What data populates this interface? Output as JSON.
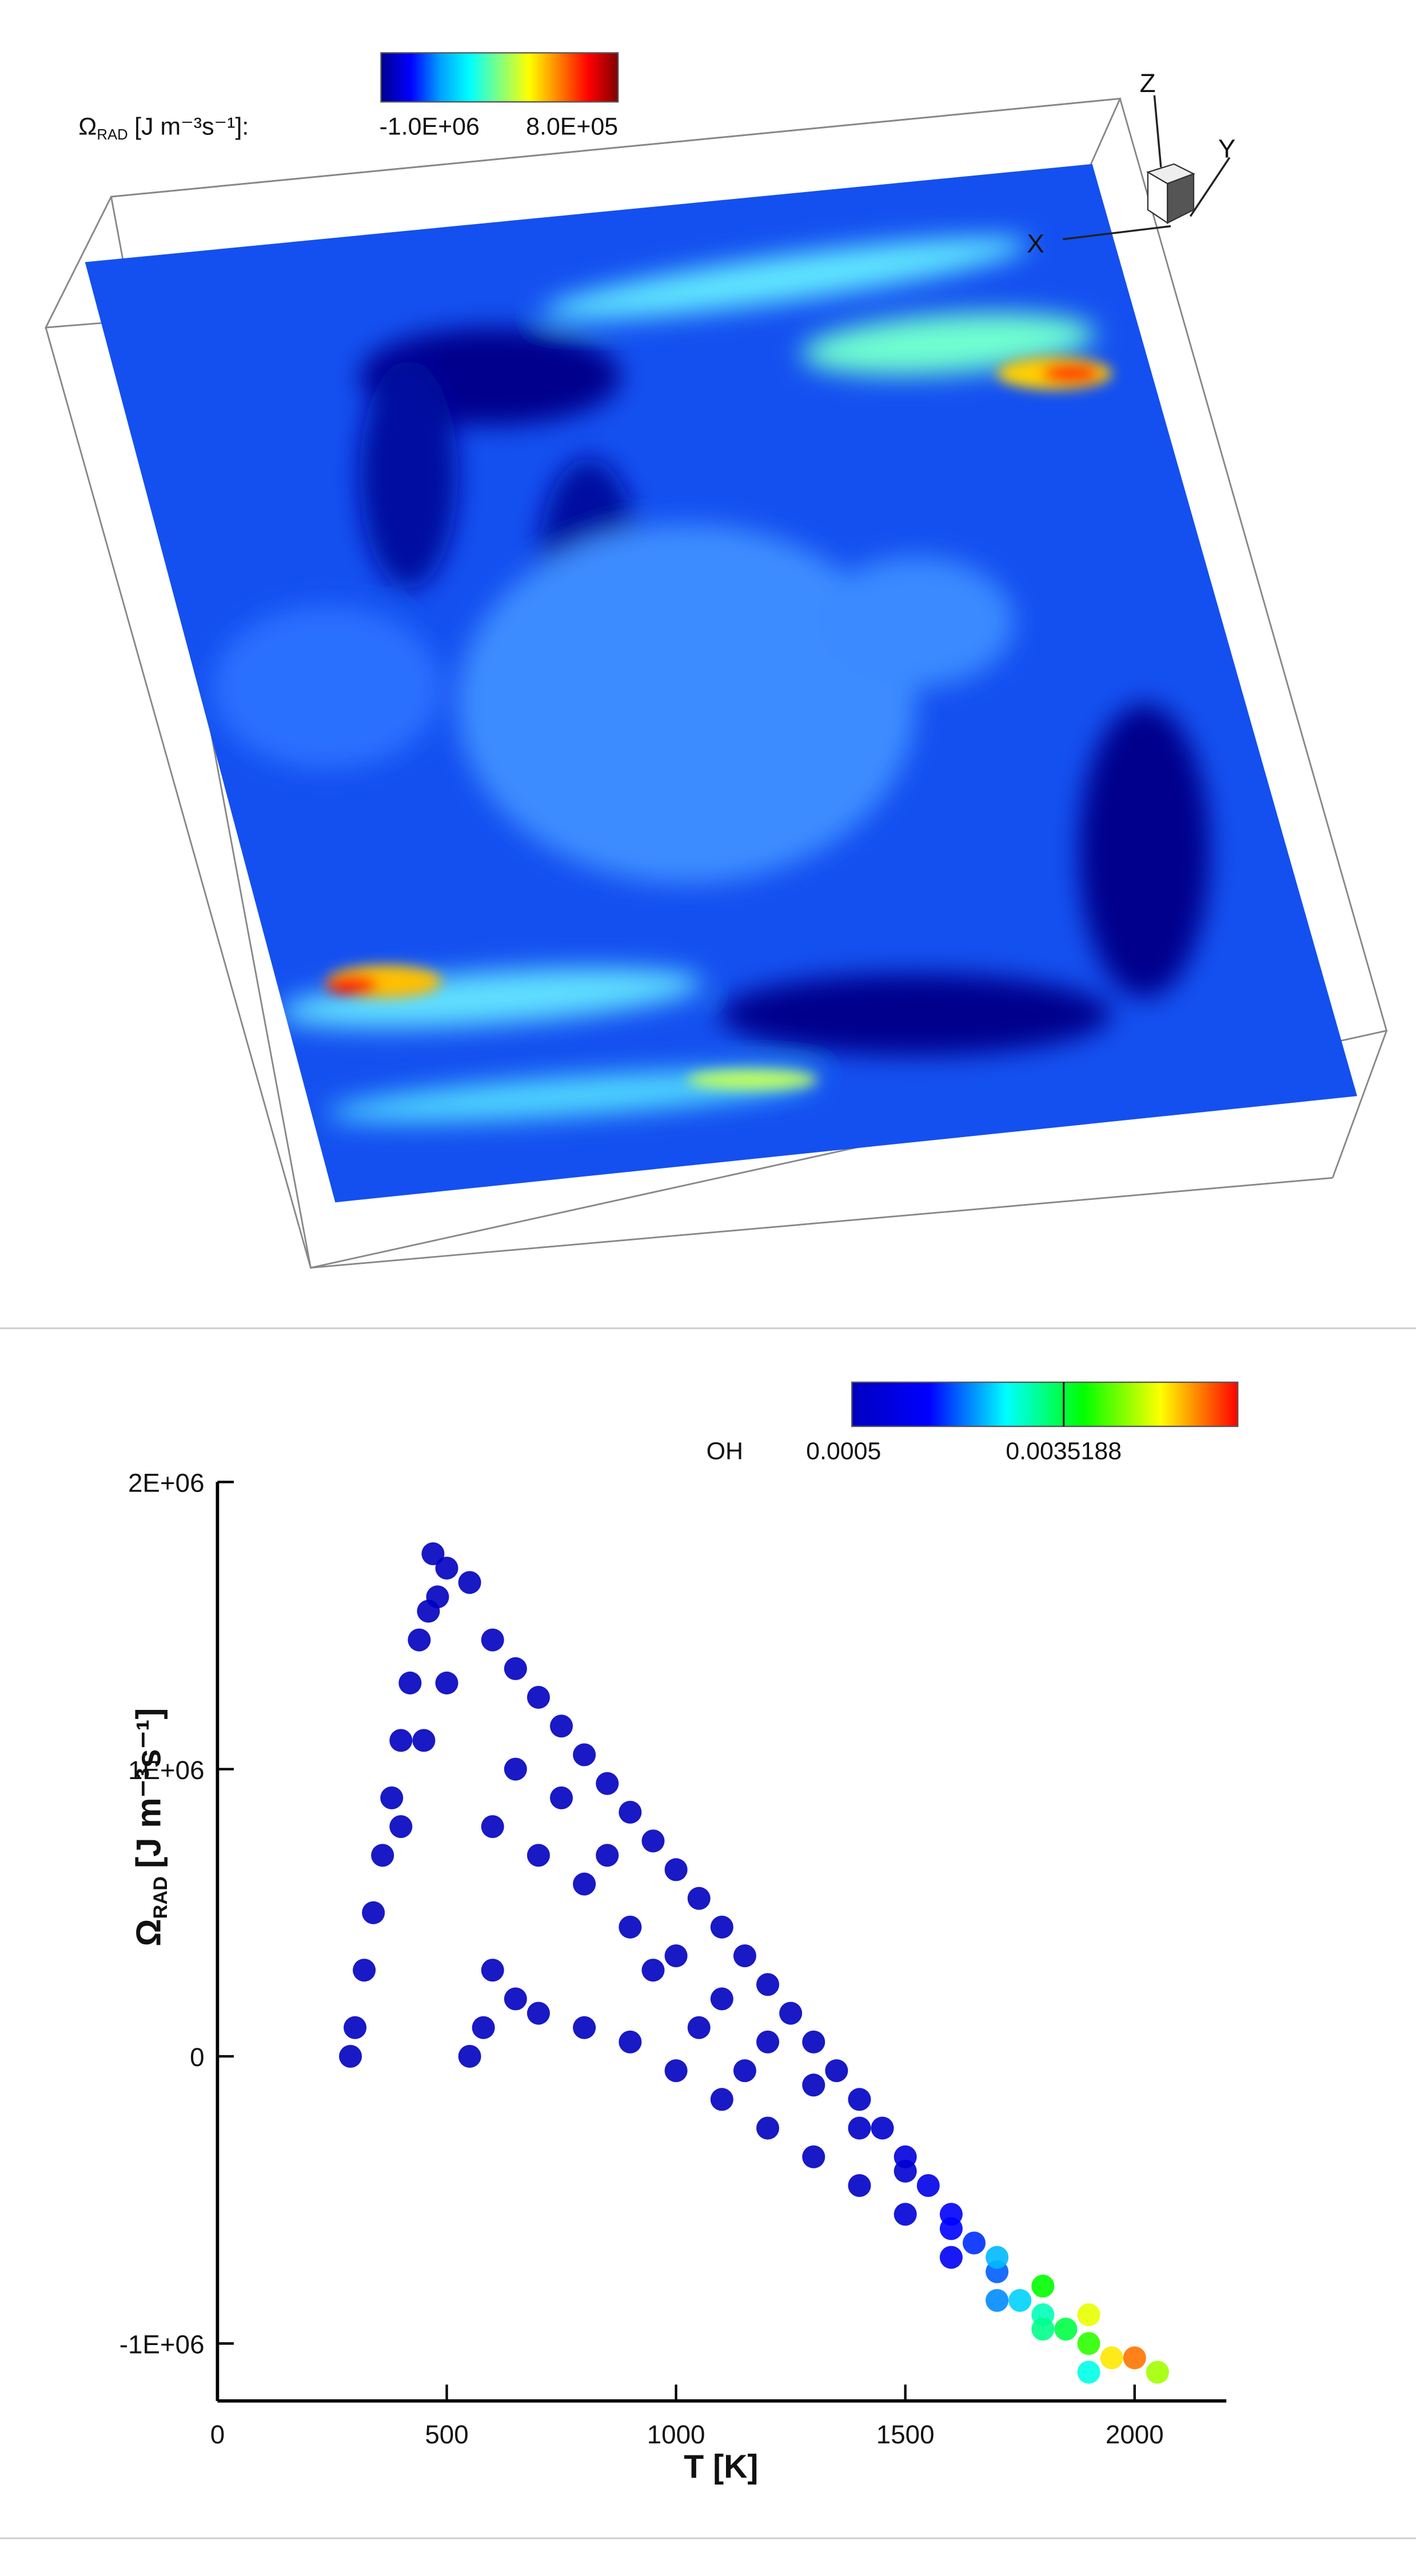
{
  "chart_data": [
    {
      "type": "field",
      "colorbar_label": {
        "symbol": "Ω",
        "subscript": "RAD",
        "unit": "[J m⁻³s⁻¹]:"
      },
      "clim": [
        -1000000,
        800000
      ],
      "colorbar_ticks": [
        {
          "value": -1000000,
          "label": "-1.0E+06"
        },
        {
          "value": 800000,
          "label": "8.0E+05"
        }
      ],
      "colormap": [
        "#00008f",
        "#0000ff",
        "#00a0ff",
        "#00ffff",
        "#80ff80",
        "#ffff00",
        "#ff8000",
        "#ff0000",
        "#800000"
      ],
      "axes_labels": {
        "x": "X",
        "y": "Y",
        "z": "Z"
      }
    },
    {
      "type": "scatter",
      "xlabel": "T [K]",
      "ylabel": {
        "symbol": "Ω",
        "subscript": "RAD",
        "unit": "[J m⁻³s⁻¹]"
      },
      "colorbar_label": "OH",
      "clim": [
        0.0005,
        0.006
      ],
      "colorbar_ticks": [
        0.0005,
        0.0035188
      ],
      "colormap": [
        "#0000c0",
        "#0000ff",
        "#00ffff",
        "#00ff00",
        "#ffff00",
        "#ff0000"
      ],
      "xlim": [
        0,
        2200
      ],
      "ylim": [
        -1200000,
        2000000
      ],
      "xticks": [
        0,
        500,
        1000,
        1500,
        2000
      ],
      "yticks": [
        {
          "value": 2000000,
          "label": "2E+06"
        },
        {
          "value": 1000000,
          "label": "1E+06"
        },
        0,
        {
          "value": -1000000,
          "label": "-1E+06"
        }
      ],
      "x": [
        290,
        300,
        320,
        340,
        360,
        380,
        400,
        420,
        440,
        460,
        480,
        500,
        470,
        550,
        600,
        650,
        700,
        750,
        800,
        850,
        900,
        950,
        1000,
        1050,
        1100,
        1150,
        1200,
        1250,
        1300,
        1350,
        1400,
        1450,
        1500,
        1550,
        1600,
        1650,
        1700,
        1750,
        1800,
        1850,
        1900,
        1950,
        2000,
        2050,
        550,
        580,
        600,
        650,
        700,
        800,
        900,
        1000,
        1100,
        1200,
        1300,
        1400,
        1500,
        1600,
        1700,
        1800,
        1900,
        700,
        800,
        900,
        1000,
        1100,
        1200,
        1300,
        1400,
        1500,
        1600,
        1700,
        1800,
        1900,
        600,
        650,
        750,
        850,
        500,
        400,
        450,
        950,
        1050,
        1150
      ],
      "values": [
        0,
        100000,
        300000,
        500000,
        700000,
        900000,
        1100000,
        1300000,
        1450000,
        1550000,
        1600000,
        1700000,
        1750000,
        1650000,
        1450000,
        1350000,
        1250000,
        1150000,
        1050000,
        950000,
        850000,
        750000,
        650000,
        550000,
        450000,
        350000,
        250000,
        150000,
        50000,
        -50000,
        -150000,
        -250000,
        -350000,
        -450000,
        -550000,
        -650000,
        -750000,
        -850000,
        -900000,
        -950000,
        -1000000,
        -1050000,
        -1050000,
        -1100000,
        0,
        100000,
        300000,
        200000,
        150000,
        100000,
        50000,
        -50000,
        -150000,
        -250000,
        -350000,
        -450000,
        -550000,
        -700000,
        -850000,
        -950000,
        -1100000,
        700000,
        600000,
        450000,
        350000,
        200000,
        50000,
        -100000,
        -250000,
        -400000,
        -600000,
        -700000,
        -800000,
        -900000,
        800000,
        1000000,
        900000,
        700000,
        1300000,
        800000,
        1100000,
        300000,
        100000,
        -50000
      ],
      "oh": [
        0.0005,
        0.0005,
        0.0005,
        0.0005,
        0.0005,
        0.0005,
        0.0005,
        0.0005,
        0.0005,
        0.0005,
        0.0005,
        0.0005,
        0.0005,
        0.0005,
        0.0005,
        0.0005,
        0.0005,
        0.0005,
        0.0005,
        0.0005,
        0.0005,
        0.0005,
        0.0005,
        0.0005,
        0.0005,
        0.0005,
        0.0005,
        0.0005,
        0.0005,
        0.0005,
        0.0006,
        0.0007,
        0.001,
        0.0012,
        0.0015,
        0.0018,
        0.002,
        0.0025,
        0.003,
        0.0035,
        0.004,
        0.005,
        0.0055,
        0.0045,
        0.0005,
        0.0005,
        0.0005,
        0.0005,
        0.0005,
        0.0005,
        0.0005,
        0.0005,
        0.0005,
        0.0005,
        0.0005,
        0.0006,
        0.0009,
        0.0014,
        0.0022,
        0.0032,
        0.0028,
        0.0005,
        0.0005,
        0.0005,
        0.0005,
        0.0005,
        0.0005,
        0.0005,
        0.0006,
        0.0008,
        0.0016,
        0.0024,
        0.0038,
        0.0048,
        0.0005,
        0.0005,
        0.0005,
        0.0005,
        0.0005,
        0.0005,
        0.0005,
        0.0005,
        0.0005,
        0.0005
      ]
    }
  ]
}
